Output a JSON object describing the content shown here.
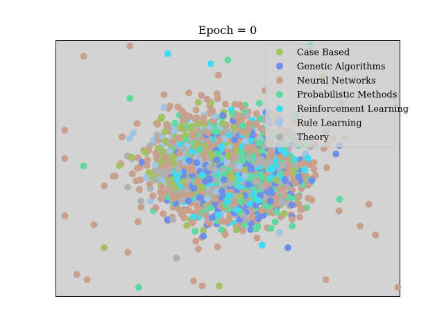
{
  "chart_data": {
    "type": "scatter",
    "title": "Epoch = 0",
    "xlabel": "",
    "ylabel": "",
    "ticks_visible": false,
    "grid": false,
    "background": "#d3d3d3",
    "legend_placement": "top-right",
    "series": [
      {
        "name": "Case Based",
        "color": "#a3c063",
        "count": 298,
        "center": [
          -0.1,
          0.05
        ],
        "spread": 0.28,
        "outliers": [
          [
            -0.72,
            -0.62
          ],
          [
            -0.05,
            -0.92
          ],
          [
            0.55,
            0.72
          ],
          [
            0.05,
            -0.48
          ]
        ]
      },
      {
        "name": "Genetic Algorithms",
        "color": "#6e8eea",
        "count": 418,
        "center": [
          0.05,
          -0.05
        ],
        "spread": 0.27,
        "outliers": [
          [
            0.65,
            0.18
          ],
          [
            -0.5,
            0.05
          ],
          [
            0.35,
            -0.62
          ]
        ]
      },
      {
        "name": "Neural Networks",
        "color": "#c9a08e",
        "count": 818,
        "center": [
          0.0,
          0.0
        ],
        "spread": 0.36,
        "outliers": [
          [
            -0.57,
            0.96
          ],
          [
            -0.84,
            0.88
          ],
          [
            -0.95,
            0.3
          ],
          [
            -0.95,
            0.08
          ],
          [
            -0.95,
            -0.37
          ],
          [
            -0.78,
            -0.44
          ],
          [
            -0.88,
            -0.83
          ],
          [
            -0.82,
            -0.87
          ],
          [
            0.47,
            0.92
          ],
          [
            0.73,
            0.7
          ],
          [
            0.82,
            -0.28
          ],
          [
            0.77,
            -0.45
          ],
          [
            0.86,
            -0.52
          ],
          [
            0.99,
            -0.93
          ],
          [
            0.57,
            -0.87
          ],
          [
            -0.2,
            -0.88
          ],
          [
            -0.15,
            -0.92
          ]
        ]
      },
      {
        "name": "Probabilistic Methods",
        "color": "#5fd9a0",
        "count": 426,
        "center": [
          0.05,
          0.0
        ],
        "spread": 0.3,
        "outliers": [
          [
            -0.84,
            0.02
          ],
          [
            0.48,
            0.96
          ],
          [
            -0.57,
            0.55
          ],
          [
            -0.52,
            -0.93
          ],
          [
            0.65,
            -0.24
          ],
          [
            0.0,
            0.85
          ]
        ]
      },
      {
        "name": "Reinforcement Learning",
        "color": "#3fdbf4",
        "count": 217,
        "center": [
          0.0,
          0.0
        ],
        "spread": 0.25,
        "outliers": [
          [
            -0.35,
            0.9
          ],
          [
            -0.1,
            0.82
          ],
          [
            0.2,
            -0.6
          ]
        ]
      },
      {
        "name": "Rule Learning",
        "color": "#9fc5e2",
        "count": 180,
        "center": [
          -0.1,
          0.05
        ],
        "spread": 0.26,
        "outliers": [
          [
            -0.55,
            0.28
          ],
          [
            0.3,
            -0.5
          ]
        ]
      },
      {
        "name": "Theory",
        "color": "#aeb0b2",
        "count": 351,
        "center": [
          0.0,
          0.0
        ],
        "spread": 0.28,
        "outliers": [
          [
            -0.3,
            -0.7
          ],
          [
            0.45,
            0.1
          ]
        ]
      }
    ],
    "xlim": [
      -1,
      1
    ],
    "ylim": [
      -1,
      1
    ]
  }
}
